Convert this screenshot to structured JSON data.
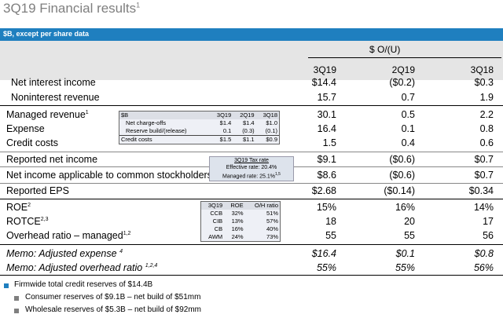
{
  "title": "3Q19 Financial results",
  "title_sup": "1",
  "banner": "$B, except per share data",
  "header": {
    "oul_label": "$ O/(U)",
    "columns": [
      "3Q19",
      "2Q19",
      "3Q18"
    ]
  },
  "rows": {
    "nii": {
      "label": "Net interest income",
      "v1": "$14.4",
      "v2": "($0.2)",
      "v3": "$0.3"
    },
    "nir": {
      "label": "Noninterest revenue",
      "v1": "15.7",
      "v2": "0.7",
      "v3": "1.9"
    },
    "managed_rev": {
      "label": "Managed revenue",
      "sup": "1",
      "v1": "30.1",
      "v2": "0.5",
      "v3": "2.2"
    },
    "expense": {
      "label": "Expense",
      "v1": "16.4",
      "v2": "0.1",
      "v3": "0.8"
    },
    "credit": {
      "label": "Credit costs",
      "v1": "1.5",
      "v2": "0.4",
      "v3": "0.6"
    },
    "rni": {
      "label": "Reported net income",
      "v1": "$9.1",
      "v2": "($0.6)",
      "v3": "$0.7"
    },
    "nia": {
      "label": "Net income applicable to common stockholders",
      "v1": "$8.6",
      "v2": "($0.6)",
      "v3": "$0.7"
    },
    "eps": {
      "label": "Reported EPS",
      "v1": "$2.68",
      "v2": "($0.14)",
      "v3": "$0.34"
    },
    "roe": {
      "label": "ROE",
      "sup": "2",
      "v1": "15%",
      "v2": "16%",
      "v3": "14%"
    },
    "rotce": {
      "label": "ROTCE",
      "sup": "2,3",
      "v1": "18",
      "v2": "20",
      "v3": "17"
    },
    "ovh": {
      "label": "Overhead ratio – managed",
      "sup": "1,2",
      "v1": "55",
      "v2": "55",
      "v3": "56"
    },
    "memo_exp": {
      "label": "Memo: Adjusted expense",
      "sup": "4",
      "v1": "$16.4",
      "v2": "$0.1",
      "v3": "$0.8"
    },
    "memo_ovh": {
      "label": "Memo: Adjusted overhead ratio",
      "sup": "1,2,4",
      "v1": "55%",
      "v2": "55%",
      "v3": "56%"
    }
  },
  "credit_box": {
    "header": [
      "$B",
      "3Q19",
      "2Q19",
      "3Q18"
    ],
    "rows": [
      [
        "Net charge-offs",
        "$1.4",
        "$1.4",
        "$1.0"
      ],
      [
        "Reserve build/(release)",
        "0.1",
        "(0.3)",
        "(0.1)"
      ]
    ],
    "total": [
      "Credit costs",
      "$1.5",
      "$1.1",
      "$0.9"
    ]
  },
  "tax_box": {
    "title": "3Q19 Tax rate",
    "effective": "Effective rate: 20.4%",
    "managed": "Managed rate: 25.1%",
    "managed_sup": "1,5"
  },
  "roe_box": {
    "header": [
      "3Q19",
      "ROE",
      "O/H ratio"
    ],
    "rows": [
      [
        "CCB",
        "32%",
        "51%"
      ],
      [
        "CIB",
        "13%",
        "57%"
      ],
      [
        "CB",
        "16%",
        "40%"
      ],
      [
        "AWM",
        "24%",
        "73%"
      ]
    ]
  },
  "footnotes": {
    "main": "Firmwide total credit reserves of $14.4B",
    "sub1": "Consumer reserves of $9.1B – net build of $51mm",
    "sub2": "Wholesale reserves of $5.3B – net build of $92mm"
  },
  "colors": {
    "banner": "#1f7fbf",
    "header_shade": "#e5e5e5",
    "bullet_main": "#1f7fbf",
    "bullet_sub": "#7f7f7f"
  }
}
